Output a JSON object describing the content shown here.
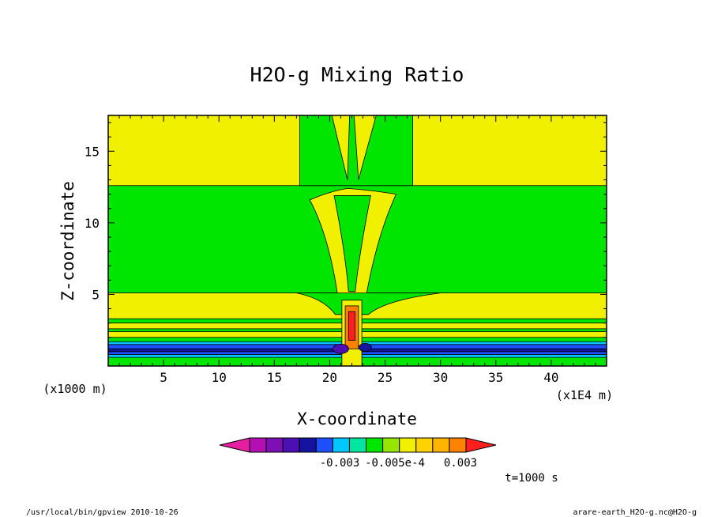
{
  "chart_data": {
    "type": "heatmap",
    "title": "H2O-g Mixing Ratio",
    "xlabel": "X-coordinate",
    "ylabel": "Z-coordinate",
    "x_unit_left": "(x1000 m)",
    "x_unit_right": "(x1E4 m)",
    "xlim": [
      0,
      45
    ],
    "ylim": [
      0,
      17.5
    ],
    "x_ticks": [
      5,
      10,
      15,
      20,
      25,
      30,
      35,
      40
    ],
    "y_ticks": [
      5,
      10,
      15
    ],
    "colorbar": {
      "colors": [
        "#e61ea0",
        "#b40fb4",
        "#7d0fb4",
        "#4b0fb4",
        "#1414a0",
        "#1e50ff",
        "#00c8ff",
        "#00e6a0",
        "#00e600",
        "#96e600",
        "#f0f000",
        "#ffd200",
        "#ffb400",
        "#ff8200",
        "#ff1e1e"
      ],
      "labels": [
        "-0.003",
        "-0.005e-4",
        "0.003"
      ]
    },
    "annotation": "t=1000 s",
    "footer_left": "/usr/local/bin/gpview  2010-10-26",
    "footer_right": "arare-earth_H2O-g.nc@H2O-g"
  }
}
